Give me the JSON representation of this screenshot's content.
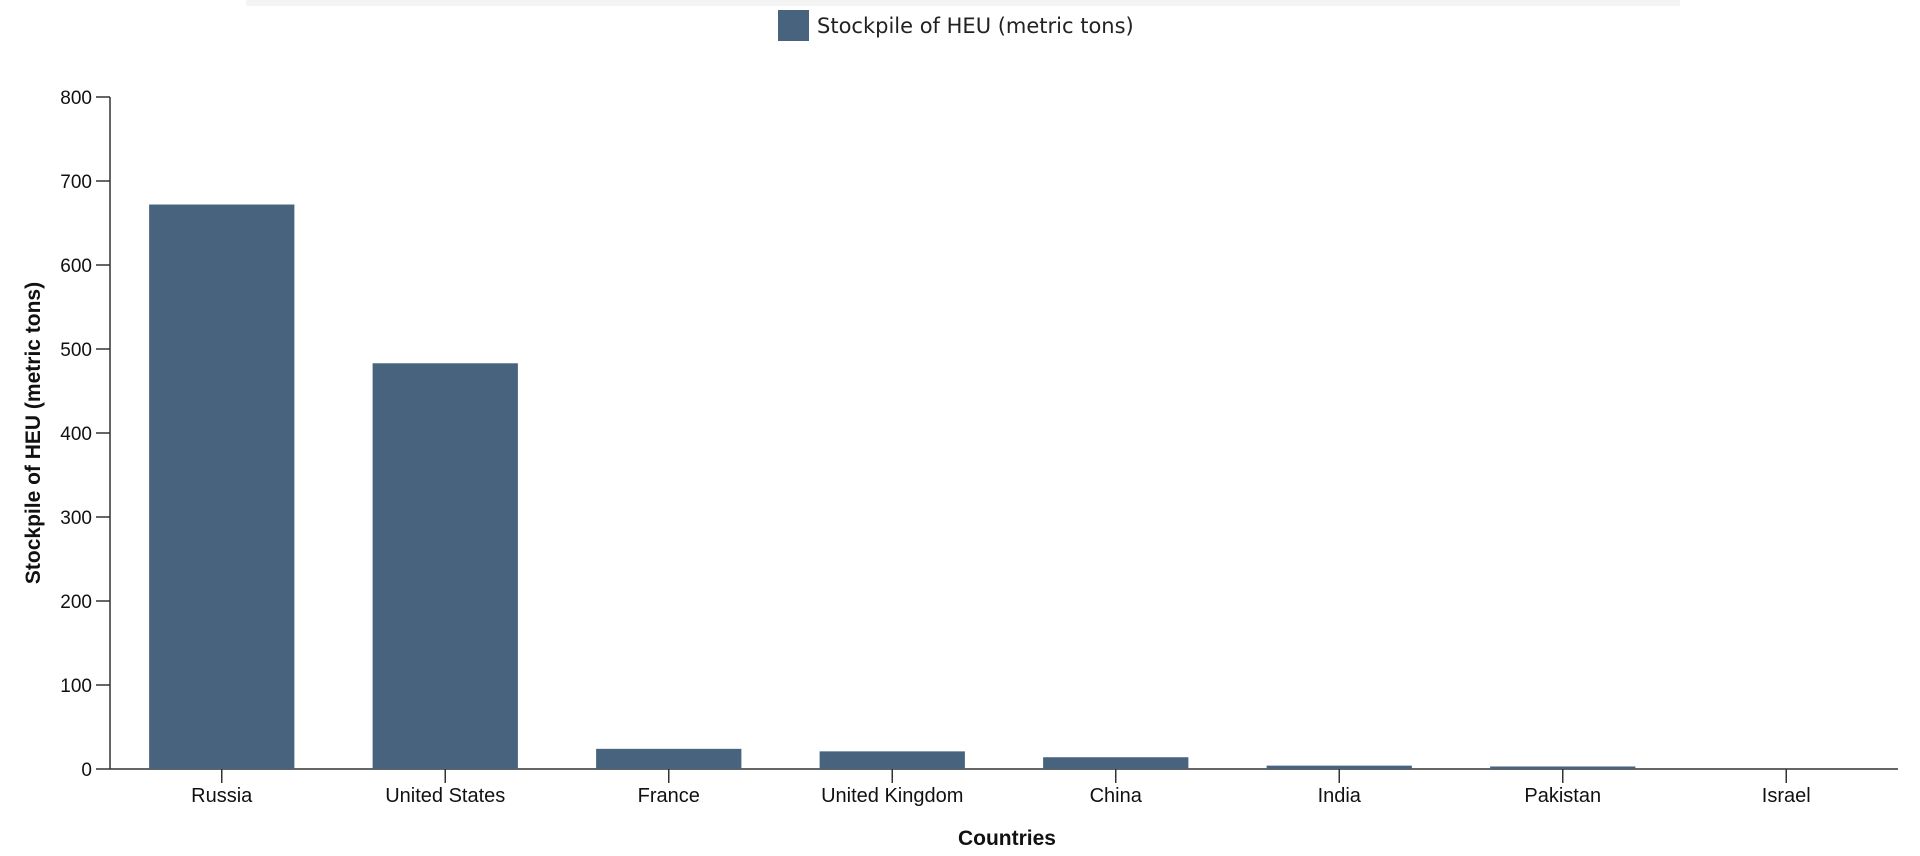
{
  "chart_data": {
    "type": "bar",
    "title": "",
    "xlabel": "Countries",
    "ylabel": "Stockpile of HEU (metric tons)",
    "categories": [
      "Russia",
      "United States",
      "France",
      "United Kingdom",
      "China",
      "India",
      "Pakistan",
      "Israel"
    ],
    "series": [
      {
        "name": "Stockpile of HEU (metric tons)",
        "values": [
          672,
          483,
          24,
          21,
          14,
          4,
          3,
          0.3
        ],
        "color": "#47637d"
      }
    ],
    "ylim": [
      0,
      800
    ],
    "yticks": [
      0,
      100,
      200,
      300,
      400,
      500,
      600,
      700,
      800
    ],
    "grid": false,
    "legend_position": "top-center"
  }
}
